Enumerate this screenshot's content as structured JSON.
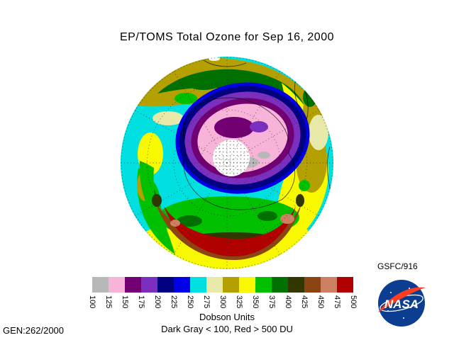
{
  "title": "EP/TOMS Total Ozone for Sep 16, 2000",
  "annotations": {
    "gsfc": "GSFC/916",
    "gen": "GEN:262/2000"
  },
  "colorbar": {
    "units_label": "Dobson Units",
    "note": "Dark Gray < 100, Red > 500 DU",
    "tick_labels": [
      "100",
      "125",
      "150",
      "175",
      "200",
      "225",
      "250",
      "275",
      "300",
      "325",
      "350",
      "375",
      "400",
      "425",
      "450",
      "475",
      "500"
    ],
    "colors": [
      "#b8b8b8",
      "#f8b4d8",
      "#730073",
      "#7b2fbe",
      "#000080",
      "#0000e8",
      "#00e0e0",
      "#e8e8a8",
      "#b4a000",
      "#f8f800",
      "#00c000",
      "#007000",
      "#303800",
      "#8b4513",
      "#cd8162",
      "#b00000"
    ]
  },
  "map": {
    "no_data_color": "#ffffff"
  },
  "nasa_logo": {
    "label": "NASA",
    "circle_color": "#0b3d91",
    "swoosh_color": "#fc3d21"
  }
}
